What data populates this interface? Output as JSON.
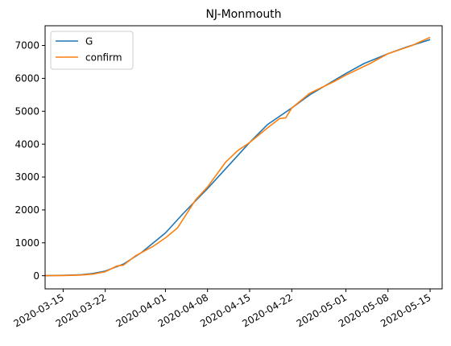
{
  "chart_data": {
    "type": "line",
    "title": "NJ-Monmouth",
    "xlabel": "",
    "ylabel": "",
    "grid": false,
    "legend_position": "upper-left",
    "x_axis_type": "date",
    "xlim": [
      "2020-03-12",
      "2020-05-17"
    ],
    "ylim": [
      -400,
      7600
    ],
    "x_ticks": [
      "2020-03-15",
      "2020-03-22",
      "2020-04-01",
      "2020-04-08",
      "2020-04-15",
      "2020-04-22",
      "2020-05-01",
      "2020-05-08",
      "2020-05-15"
    ],
    "y_ticks": [
      0,
      1000,
      2000,
      3000,
      4000,
      5000,
      6000,
      7000
    ],
    "series": [
      {
        "name": "G",
        "color": "#1f77b4",
        "points": [
          [
            "2020-03-12",
            0
          ],
          [
            "2020-03-15",
            10
          ],
          [
            "2020-03-18",
            30
          ],
          [
            "2020-03-20",
            70
          ],
          [
            "2020-03-22",
            140
          ],
          [
            "2020-03-25",
            350
          ],
          [
            "2020-03-28",
            700
          ],
          [
            "2020-04-01",
            1300
          ],
          [
            "2020-04-04",
            1900
          ],
          [
            "2020-04-08",
            2650
          ],
          [
            "2020-04-11",
            3250
          ],
          [
            "2020-04-15",
            4050
          ],
          [
            "2020-04-18",
            4600
          ],
          [
            "2020-04-22",
            5100
          ],
          [
            "2020-04-25",
            5500
          ],
          [
            "2020-05-01",
            6150
          ],
          [
            "2020-05-04",
            6450
          ],
          [
            "2020-05-08",
            6750
          ],
          [
            "2020-05-11",
            6950
          ],
          [
            "2020-05-15",
            7180
          ]
        ]
      },
      {
        "name": "confirm",
        "color": "#ff7f0e",
        "points": [
          [
            "2020-03-12",
            0
          ],
          [
            "2020-03-15",
            5
          ],
          [
            "2020-03-18",
            20
          ],
          [
            "2020-03-20",
            50
          ],
          [
            "2020-03-22",
            120
          ],
          [
            "2020-03-24",
            300
          ],
          [
            "2020-03-25",
            320
          ],
          [
            "2020-03-27",
            600
          ],
          [
            "2020-03-30",
            900
          ],
          [
            "2020-04-01",
            1150
          ],
          [
            "2020-04-03",
            1450
          ],
          [
            "2020-04-06",
            2300
          ],
          [
            "2020-04-08",
            2700
          ],
          [
            "2020-04-11",
            3450
          ],
          [
            "2020-04-13",
            3800
          ],
          [
            "2020-04-15",
            4050
          ],
          [
            "2020-04-18",
            4500
          ],
          [
            "2020-04-20",
            4780
          ],
          [
            "2020-04-21",
            4800
          ],
          [
            "2020-04-22",
            5100
          ],
          [
            "2020-04-25",
            5550
          ],
          [
            "2020-04-29",
            5900
          ],
          [
            "2020-05-01",
            6100
          ],
          [
            "2020-05-05",
            6450
          ],
          [
            "2020-05-08",
            6750
          ],
          [
            "2020-05-12",
            7000
          ],
          [
            "2020-05-15",
            7250
          ]
        ]
      }
    ]
  }
}
